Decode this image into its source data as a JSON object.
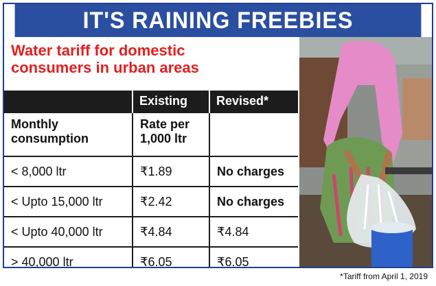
{
  "banner": {
    "title": "IT'S RAINING FREEBIES"
  },
  "subtitle": {
    "line1": "Water tariff for domestic",
    "line2": "consumers in urban areas"
  },
  "table": {
    "headers": [
      "",
      "Existing",
      "Revised*"
    ],
    "label_row": {
      "col1_line1": "Monthly",
      "col1_line2": "consumption",
      "col2_line1": "Rate per",
      "col2_line2": "1,000 ltr"
    },
    "rows": [
      {
        "consumption": "< 8,000 ltr",
        "existing": "₹1.89",
        "revised": "No charges"
      },
      {
        "consumption": "< Upto 15,000 ltr",
        "existing": "₹2.42",
        "revised": "No charges"
      },
      {
        "consumption": "< Upto 40,000 ltr",
        "existing": "₹4.84",
        "revised": "₹4.84"
      },
      {
        "consumption": "> 40,000 ltr",
        "existing": "₹6.05",
        "revised": "₹6.05"
      }
    ]
  },
  "footnote": "*Tariff from April 1, 2019",
  "colors": {
    "banner": "#2a4ea0",
    "subtitle": "#e41f1f",
    "header_bg": "#1c1c1c"
  }
}
